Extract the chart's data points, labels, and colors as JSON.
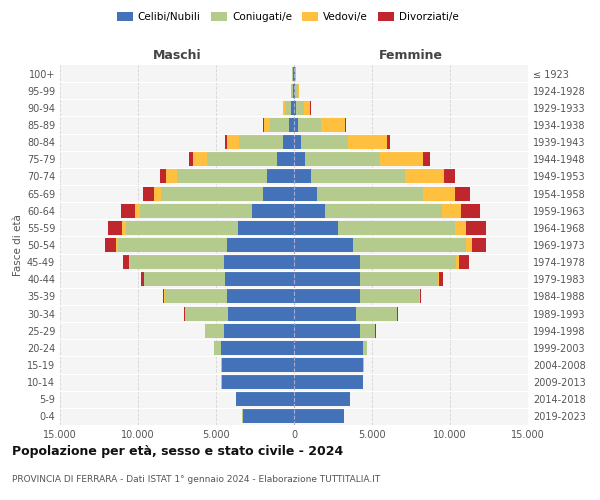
{
  "age_groups": [
    "0-4",
    "5-9",
    "10-14",
    "15-19",
    "20-24",
    "25-29",
    "30-34",
    "35-39",
    "40-44",
    "45-49",
    "50-54",
    "55-59",
    "60-64",
    "65-69",
    "70-74",
    "75-79",
    "80-84",
    "85-89",
    "90-94",
    "95-99",
    "100+"
  ],
  "birth_years": [
    "2019-2023",
    "2014-2018",
    "2009-2013",
    "2004-2008",
    "1999-2003",
    "1994-1998",
    "1989-1993",
    "1984-1988",
    "1979-1983",
    "1974-1978",
    "1969-1973",
    "1964-1968",
    "1959-1963",
    "1954-1958",
    "1949-1953",
    "1944-1948",
    "1939-1943",
    "1934-1938",
    "1929-1933",
    "1924-1928",
    "≤ 1923"
  ],
  "maschi": {
    "celibi": [
      3300,
      3700,
      4600,
      4600,
      4700,
      4500,
      4200,
      4300,
      4400,
      4500,
      4300,
      3600,
      2700,
      2000,
      1700,
      1100,
      700,
      350,
      180,
      80,
      50
    ],
    "coniugati": [
      5,
      10,
      50,
      100,
      400,
      1200,
      2800,
      4000,
      5200,
      6000,
      7000,
      7200,
      7200,
      6500,
      5800,
      4500,
      2800,
      1200,
      400,
      100,
      50
    ],
    "vedovi": [
      0,
      0,
      0,
      0,
      5,
      5,
      5,
      10,
      20,
      50,
      100,
      200,
      300,
      500,
      700,
      900,
      800,
      400,
      100,
      30,
      10
    ],
    "divorziati": [
      0,
      0,
      0,
      0,
      5,
      20,
      50,
      100,
      200,
      400,
      700,
      900,
      900,
      700,
      400,
      200,
      100,
      50,
      20,
      10,
      5
    ]
  },
  "femmine": {
    "nubili": [
      3200,
      3600,
      4400,
      4400,
      4400,
      4200,
      4000,
      4200,
      4200,
      4200,
      3800,
      2800,
      2000,
      1500,
      1100,
      700,
      450,
      250,
      150,
      80,
      50
    ],
    "coniugate": [
      3,
      5,
      30,
      80,
      300,
      1000,
      2600,
      3800,
      5000,
      6200,
      7200,
      7500,
      7500,
      6800,
      6000,
      4800,
      3000,
      1500,
      500,
      150,
      50
    ],
    "vedove": [
      0,
      0,
      0,
      0,
      5,
      10,
      20,
      50,
      100,
      200,
      400,
      700,
      1200,
      2000,
      2500,
      2800,
      2500,
      1500,
      400,
      80,
      20
    ],
    "divorziate": [
      0,
      0,
      0,
      0,
      5,
      20,
      50,
      100,
      250,
      600,
      900,
      1300,
      1200,
      1000,
      700,
      400,
      200,
      80,
      30,
      10,
      5
    ]
  },
  "colors": {
    "celibi_nubili": "#4472b8",
    "coniugati": "#b5ca8d",
    "vedovi": "#ffc040",
    "divorziati": "#c0272d"
  },
  "xlim": 15000,
  "title": "Popolazione per età, sesso e stato civile - 2024",
  "subtitle": "PROVINCIA DI FERRARA - Dati ISTAT 1° gennaio 2024 - Elaborazione TUTTITALIA.IT",
  "ylabel_left": "Fasce di età",
  "xlabel_maschi": "Maschi",
  "xlabel_femmine": "Femmine",
  "bg_color": "#ffffff",
  "plot_bg": "#f5f5f5"
}
